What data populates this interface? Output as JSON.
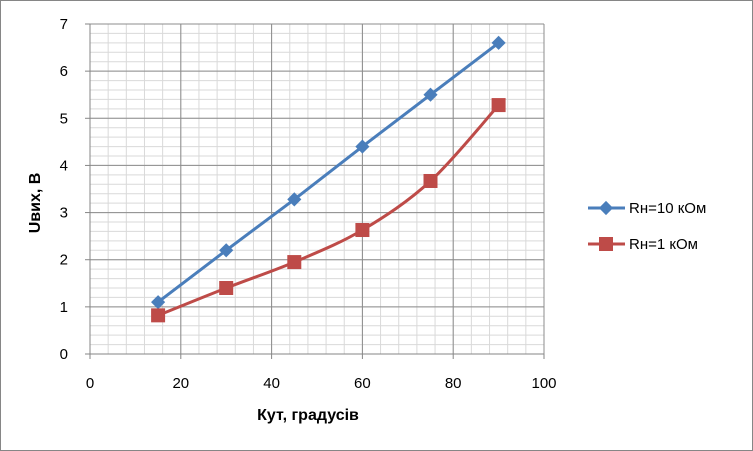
{
  "chart_data": {
    "type": "line",
    "xlabel": "Кут, градусів",
    "ylabel": "Uвих, В",
    "xlim": [
      0,
      100
    ],
    "ylim": [
      0,
      7
    ],
    "xticks": [
      0,
      20,
      40,
      60,
      80,
      100
    ],
    "yticks": [
      0,
      1,
      2,
      3,
      4,
      5,
      6,
      7
    ],
    "grid": true,
    "legend_position": "right",
    "x": [
      15,
      30,
      45,
      60,
      75,
      90
    ],
    "series": [
      {
        "name": "Rн=10 кОм",
        "marker": "diamond",
        "color": "#4A7EBB",
        "values": [
          1.1,
          2.2,
          3.28,
          4.4,
          5.5,
          6.6
        ]
      },
      {
        "name": "Rн=1 кОм",
        "marker": "square",
        "color": "#BE4B48",
        "values": [
          0.82,
          1.4,
          1.95,
          2.63,
          3.67,
          5.28
        ]
      }
    ]
  }
}
